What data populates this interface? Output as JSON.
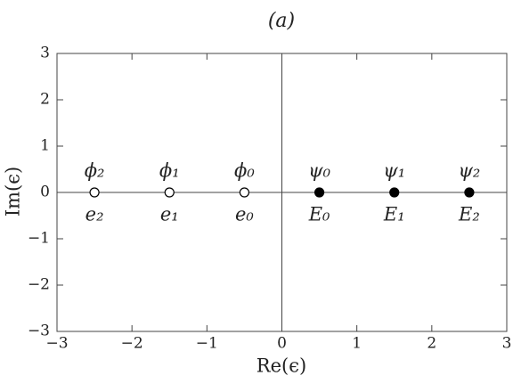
{
  "chart_data": {
    "type": "scatter",
    "title": "(a)",
    "x_label": "Re(ϵ)",
    "y_label": "Im(ϵ)",
    "xlim": [
      -3,
      3
    ],
    "ylim": [
      -3,
      3
    ],
    "xticks": [
      {
        "value": -3,
        "label": "−3"
      },
      {
        "value": -2,
        "label": "−2"
      },
      {
        "value": -1,
        "label": "−1"
      },
      0,
      1,
      2,
      3
    ],
    "yticks": [
      {
        "value": -3,
        "label": "−3"
      },
      {
        "value": -2,
        "label": "−2"
      },
      {
        "value": -1,
        "label": "−1"
      },
      0,
      1,
      2,
      3
    ],
    "axes_through_origin": true,
    "color": "#000000",
    "series": [
      {
        "marker": "open",
        "x": [
          -2.5,
          -1.5,
          -0.5
        ],
        "y": [
          0,
          0,
          0
        ],
        "labels_above": [
          "ϕ₂",
          "ϕ₁",
          "ϕ₀"
        ],
        "labels_below": [
          "e₂",
          "e₁",
          "e₀"
        ]
      },
      {
        "marker": "filled",
        "x": [
          0.5,
          1.5,
          2.5
        ],
        "y": [
          0,
          0,
          0
        ],
        "labels_above": [
          "ψ₀",
          "ψ₁",
          "ψ₂"
        ],
        "labels_below": [
          "E₀",
          "E₁",
          "E₂"
        ]
      }
    ]
  }
}
